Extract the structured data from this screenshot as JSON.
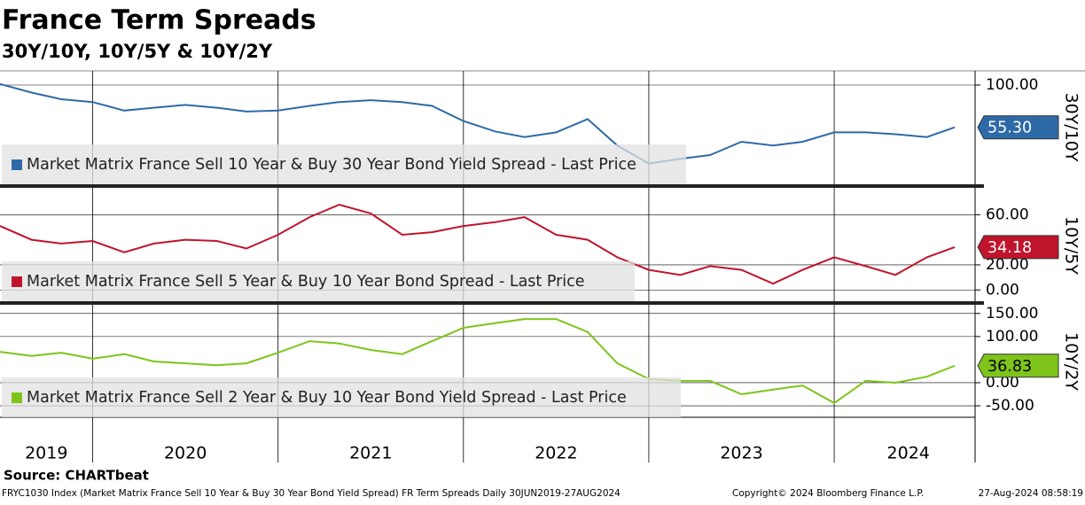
{
  "title": "France Term Spreads",
  "subtitle": "30Y/10Y, 10Y/5Y & 10Y/2Y",
  "source": "Source: CHARTbeat",
  "footer_left": "FRYC1030 Index (Market Matrix France Sell 10 Year & Buy 30 Year Bond Yield Spread) FR Term Spreads  Daily 30JUN2019-27AUG2024",
  "footer_mid": "Copyright© 2024 Bloomberg Finance L.P.",
  "footer_right": "27-Aug-2024 08:58:19",
  "x_axis": {
    "x": [
      2019.5,
      2019.67,
      2019.83,
      2020.0,
      2020.17,
      2020.33,
      2020.5,
      2020.67,
      2020.83,
      2021.0,
      2021.17,
      2021.33,
      2021.5,
      2021.67,
      2021.83,
      2022.0,
      2022.17,
      2022.33,
      2022.5,
      2022.67,
      2022.83,
      2023.0,
      2023.17,
      2023.33,
      2023.5,
      2023.67,
      2023.83,
      2024.0,
      2024.17,
      2024.33,
      2024.5,
      2024.65
    ],
    "xlim": [
      2019.5,
      2024.76
    ],
    "xticks": [
      {
        "value": 2019.75,
        "label": "2019"
      },
      {
        "value": 2020.5,
        "label": "2020"
      },
      {
        "value": 2021.5,
        "label": "2021"
      },
      {
        "value": 2022.5,
        "label": "2022"
      },
      {
        "value": 2023.5,
        "label": "2023"
      },
      {
        "value": 2024.4,
        "label": "2024"
      }
    ],
    "dividers": [
      2020,
      2021,
      2022,
      2023,
      2024
    ]
  },
  "chart_data": [
    {
      "type": "line",
      "axis_label": "30Y/10Y",
      "ylim": [
        -4,
        115
      ],
      "yticks": [
        {
          "value": 100,
          "label": "100.00"
        }
      ],
      "series": [
        {
          "name": "Market Matrix France Sell 10 Year & Buy 30 Year Bond Yield Spread - Last Price",
          "color": "#2e6aa8",
          "last_label": "55.30",
          "values": [
            101,
            92,
            85,
            82,
            73,
            76,
            79,
            76,
            72,
            73,
            78,
            82,
            84,
            82,
            78,
            62,
            51,
            45,
            50,
            64,
            36,
            17,
            22,
            26,
            40,
            36,
            40,
            50,
            50,
            48,
            45,
            55.3
          ]
        }
      ]
    },
    {
      "type": "line",
      "axis_label": "10Y/5Y",
      "ylim": [
        -9,
        80
      ],
      "yticks": [
        {
          "value": 0,
          "label": "0.00"
        },
        {
          "value": 20,
          "label": "20.00"
        },
        {
          "value": 60,
          "label": "60.00"
        }
      ],
      "series": [
        {
          "name": "Market Matrix France Sell 5 Year & Buy 10 Year Bond Spread - Last Price",
          "color": "#c0142c",
          "last_label": "34.18",
          "values": [
            51,
            40,
            37,
            39,
            30,
            37,
            40,
            39,
            33,
            44,
            58,
            68,
            61,
            44,
            46,
            51,
            54,
            58,
            44,
            40,
            26,
            16,
            12,
            19,
            16,
            5,
            16,
            26,
            19,
            12,
            26,
            34.18
          ]
        }
      ]
    },
    {
      "type": "line",
      "axis_label": "10Y/2Y",
      "ylim": [
        -73,
        165
      ],
      "yticks": [
        {
          "value": 150,
          "label": "150.00"
        },
        {
          "value": 100,
          "label": "100.00"
        },
        {
          "value": 0,
          "label": "0.00"
        },
        {
          "value": -50,
          "label": "-50.00"
        }
      ],
      "series": [
        {
          "name": "Market Matrix France Sell 2 Year & Buy 10 Year Bond Yield Spread - Last Price",
          "color": "#7ec41a",
          "last_label": "36.83",
          "values": [
            67,
            58,
            65,
            52,
            62,
            46,
            42,
            38,
            42,
            65,
            90,
            85,
            71,
            62,
            90,
            119,
            129,
            138,
            138,
            110,
            42,
            8,
            4,
            4,
            -25,
            -15,
            -6,
            -44,
            4,
            0,
            13,
            36.83
          ]
        }
      ]
    }
  ]
}
